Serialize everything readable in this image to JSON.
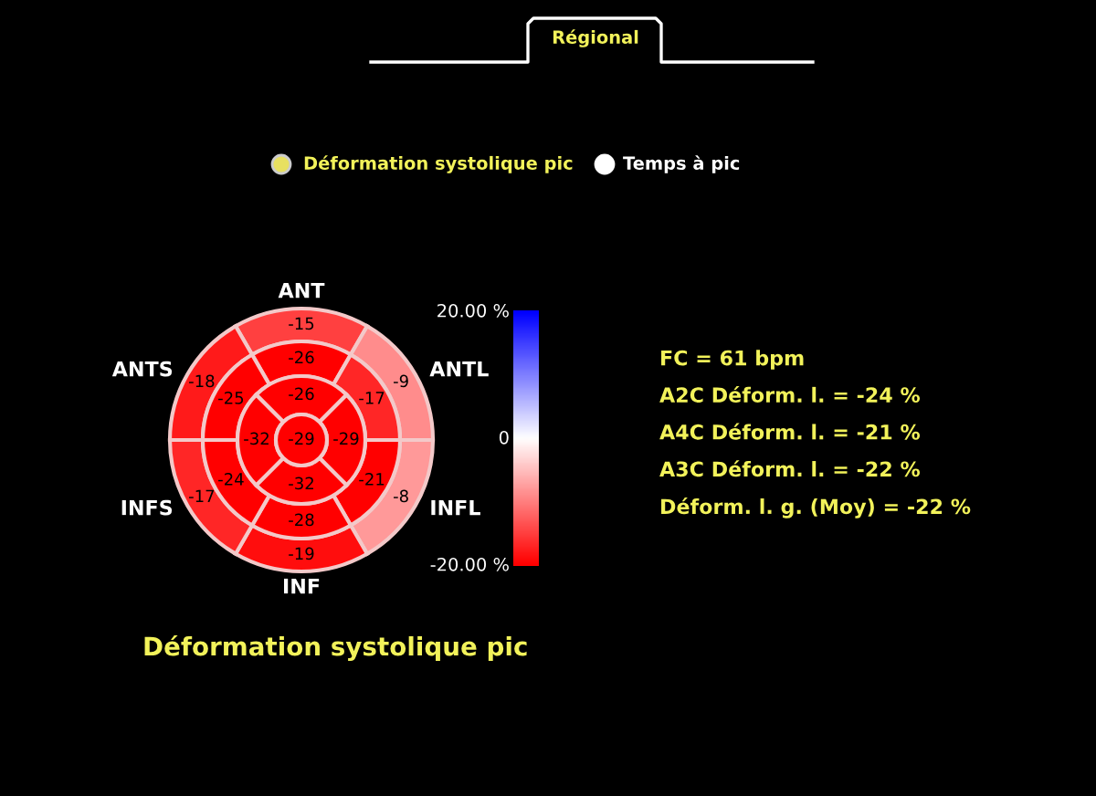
{
  "chart_data": {
    "type": "other",
    "title": "Déformation systolique pic",
    "categories": [
      "ANT",
      "ANTL",
      "INFL",
      "INF",
      "INFS",
      "ANTS"
    ],
    "series": [
      {
        "values": [
          -15,
          -9,
          -8,
          -19,
          -17,
          -18
        ],
        "colors": [
          "#ff4040",
          "#ff8c8c",
          "#ff9999",
          "#ff0d0d",
          "#ff2626",
          "#ff1a1a"
        ]
      },
      {
        "values": [
          -26,
          -17,
          -21,
          -28,
          -24,
          -25
        ],
        "colors": [
          "#ff0000",
          "#ff2626",
          "#ff0000",
          "#ff0000",
          "#ff0000",
          "#ff0000"
        ]
      },
      {
        "values": [
          -26,
          -29,
          null,
          -32,
          null,
          -32
        ],
        "color": "#ff0000"
      },
      {
        "values": [
          -29,
          null,
          null,
          null,
          null,
          null
        ],
        "color": "#ff0000"
      }
    ],
    "data_labels": true,
    "annotations": [
      "20.00 %",
      "0",
      "-20.00 %",
      "Régional",
      "Déformation systolique pic",
      "Temps à pic",
      "FC = 61 bpm",
      "A2C Déform. l. = -24 %",
      "A4C Déform. l. = -21 %",
      "A3C Déform. l. = -22 %",
      "Déform. l. g. (Moy) = -22 %"
    ]
  }
}
